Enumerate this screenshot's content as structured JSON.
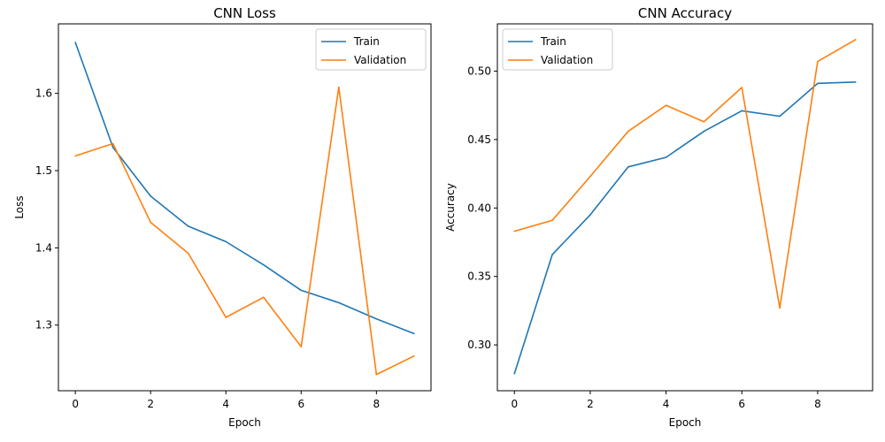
{
  "chart_data": [
    {
      "type": "line",
      "title": "CNN Loss",
      "xlabel": "Epoch",
      "ylabel": "Loss",
      "x": [
        0,
        1,
        2,
        3,
        4,
        5,
        6,
        7,
        8,
        9
      ],
      "xlim": [
        -0.45,
        9.45
      ],
      "ylim": [
        1.215,
        1.69
      ],
      "xticks": [
        0,
        2,
        4,
        6,
        8
      ],
      "xtick_labels": [
        "0",
        "2",
        "4",
        "6",
        "8"
      ],
      "yticks": [
        1.3,
        1.4,
        1.5,
        1.6
      ],
      "ytick_labels": [
        "1.3",
        "1.4",
        "1.5",
        "1.6"
      ],
      "legend": "upper right",
      "grid": false,
      "series": [
        {
          "name": "Train",
          "color": "#1f77b4",
          "values": [
            1.666,
            1.53,
            1.467,
            1.428,
            1.408,
            1.378,
            1.345,
            1.329,
            1.308,
            1.289
          ]
        },
        {
          "name": "Validation",
          "color": "#ff7f0e",
          "values": [
            1.519,
            1.535,
            1.433,
            1.393,
            1.31,
            1.336,
            1.272,
            1.608,
            1.236,
            1.26
          ]
        }
      ]
    },
    {
      "type": "line",
      "title": "CNN Accuracy",
      "xlabel": "Epoch",
      "ylabel": "Accuracy",
      "x": [
        0,
        1,
        2,
        3,
        4,
        5,
        6,
        7,
        8,
        9
      ],
      "xlim": [
        -0.45,
        9.45
      ],
      "ylim": [
        0.2665,
        0.5345
      ],
      "xticks": [
        0,
        2,
        4,
        6,
        8
      ],
      "xtick_labels": [
        "0",
        "2",
        "4",
        "6",
        "8"
      ],
      "yticks": [
        0.3,
        0.35,
        0.4,
        0.45,
        0.5
      ],
      "ytick_labels": [
        "0.30",
        "0.35",
        "0.40",
        "0.45",
        "0.50"
      ],
      "legend": "upper left",
      "grid": false,
      "series": [
        {
          "name": "Train",
          "color": "#1f77b4",
          "values": [
            0.279,
            0.366,
            0.395,
            0.43,
            0.437,
            0.456,
            0.471,
            0.467,
            0.491,
            0.492
          ]
        },
        {
          "name": "Validation",
          "color": "#ff7f0e",
          "values": [
            0.383,
            0.391,
            0.423,
            0.456,
            0.475,
            0.463,
            0.488,
            0.327,
            0.507,
            0.523
          ]
        }
      ]
    }
  ]
}
